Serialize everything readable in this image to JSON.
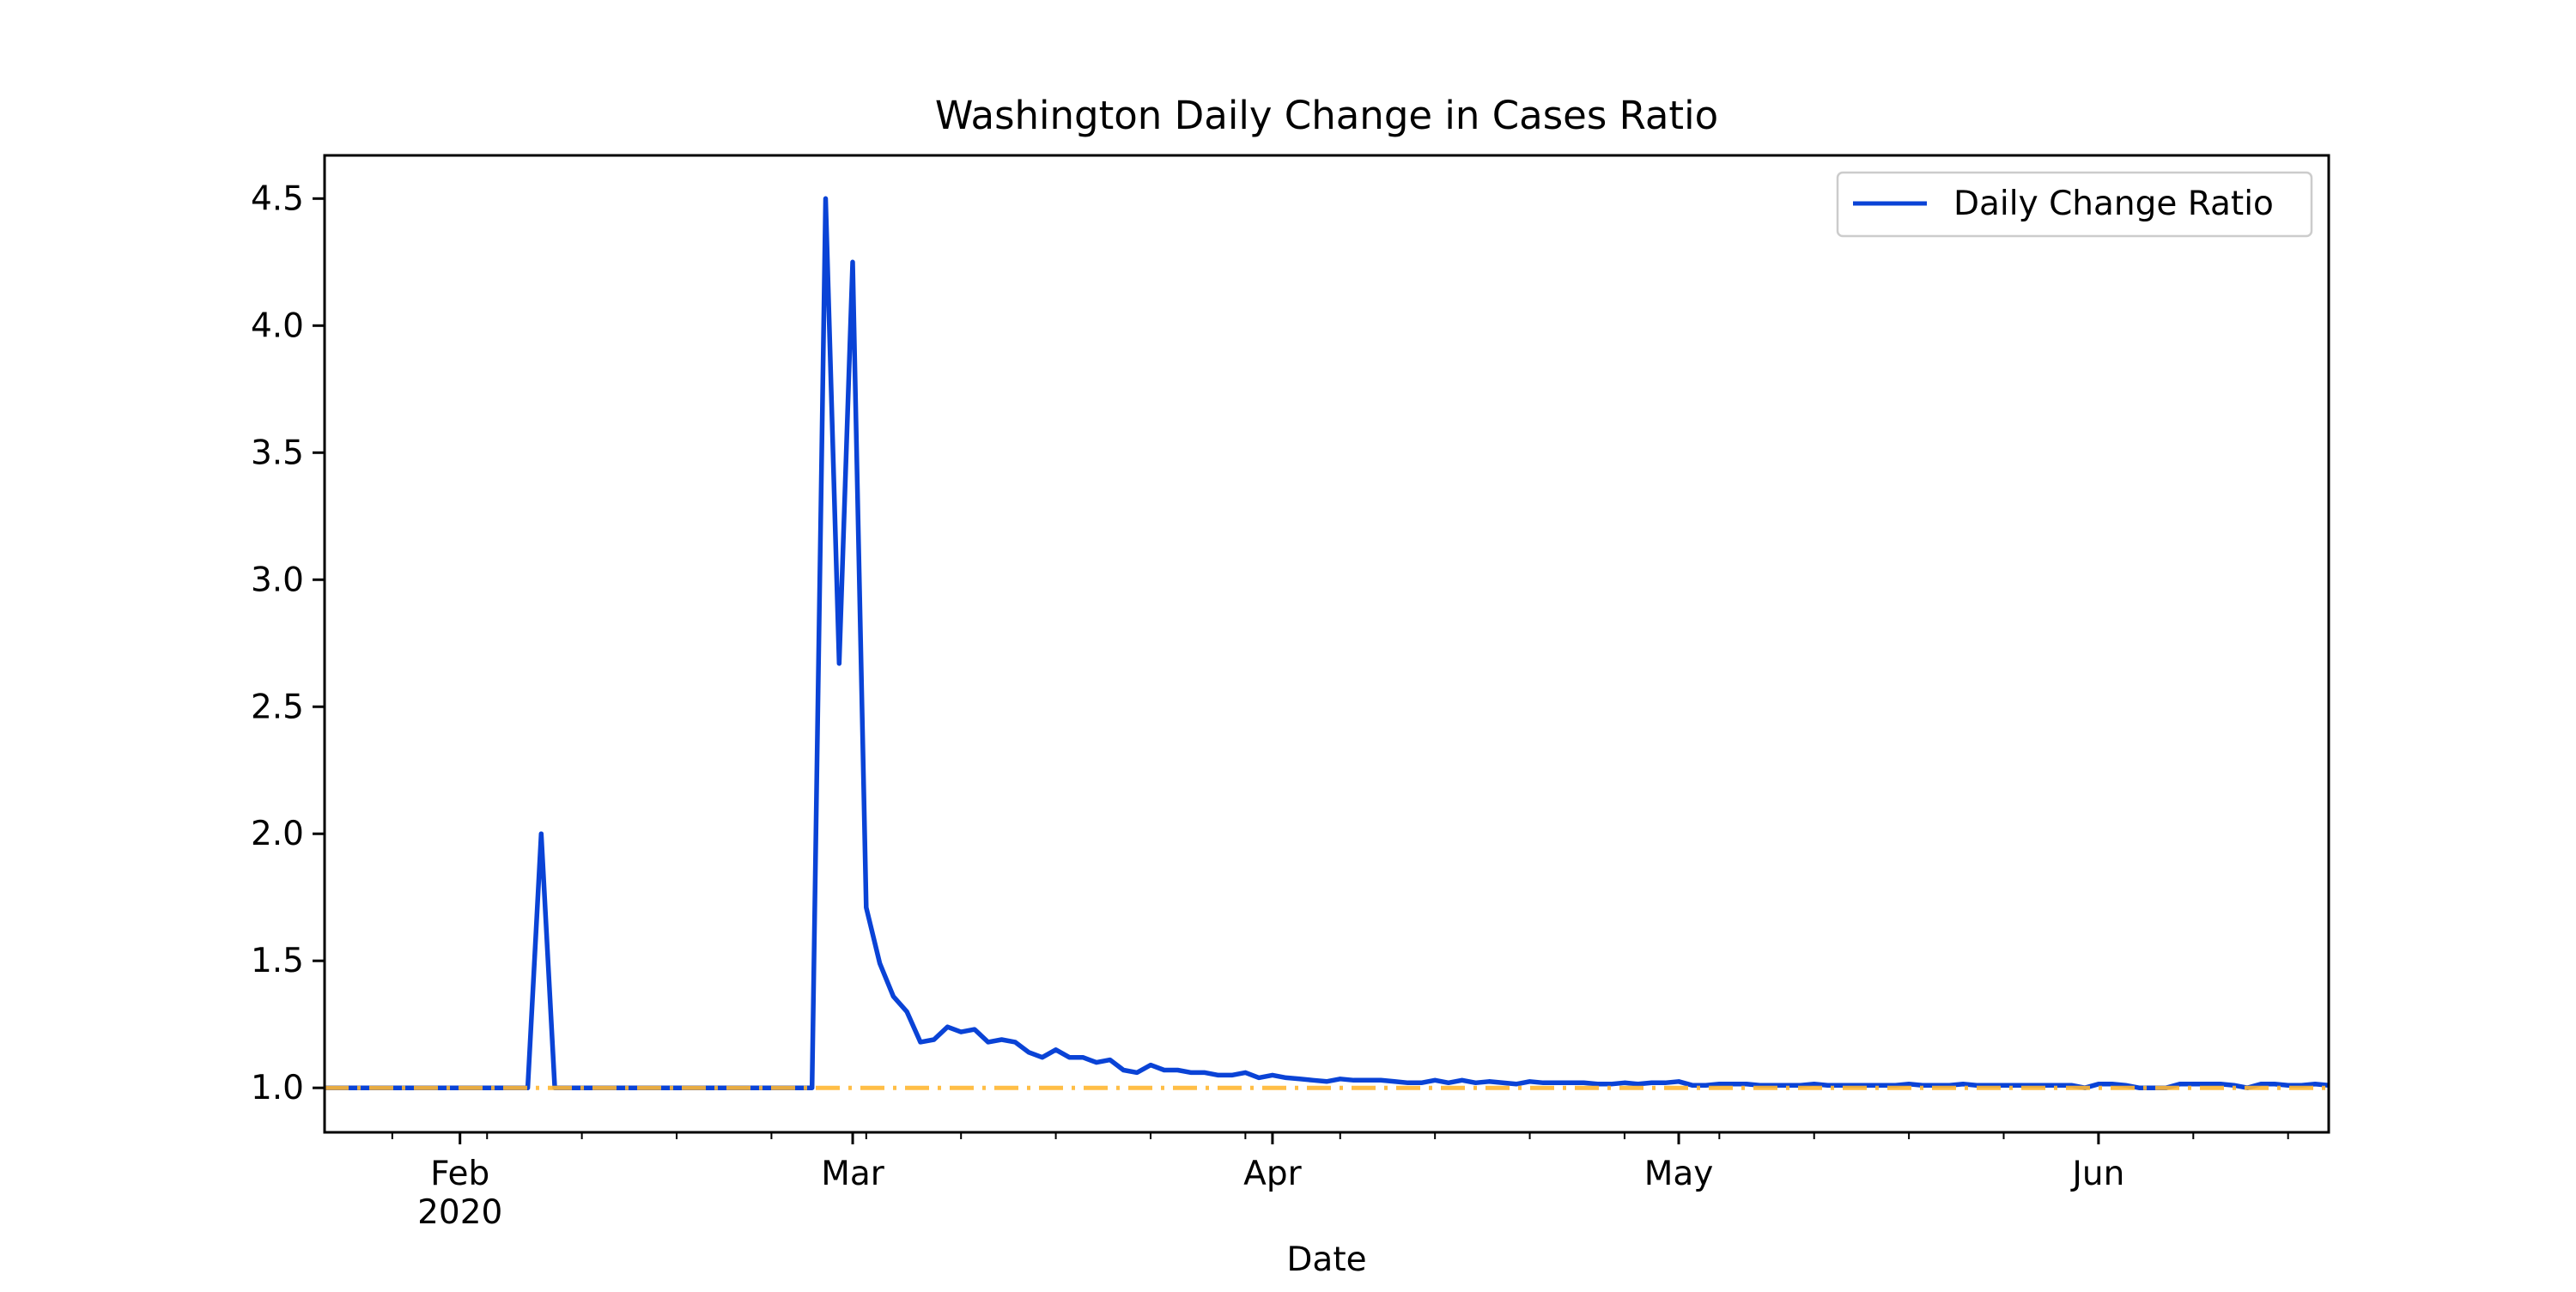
{
  "chart_data": {
    "type": "line",
    "title": "Washington Daily Change in Cases Ratio",
    "xlabel": "Date",
    "ylabel": "",
    "x_start": "2020-01-22",
    "xlim": [
      "2020-01-22",
      "2020-06-18"
    ],
    "ylim": [
      0.825,
      4.67
    ],
    "y_ticks": [
      1.0,
      1.5,
      2.0,
      2.5,
      3.0,
      3.5,
      4.0,
      4.5
    ],
    "y_tick_labels": [
      "1.0",
      "1.5",
      "2.0",
      "2.5",
      "3.0",
      "3.5",
      "4.0",
      "4.5"
    ],
    "x_major_ticks": [
      {
        "date": "2020-02-01",
        "label": "Feb",
        "sublabel": "2020"
      },
      {
        "date": "2020-03-01",
        "label": "Mar",
        "sublabel": ""
      },
      {
        "date": "2020-04-01",
        "label": "Apr",
        "sublabel": ""
      },
      {
        "date": "2020-05-01",
        "label": "May",
        "sublabel": ""
      },
      {
        "date": "2020-06-01",
        "label": "Jun",
        "sublabel": ""
      }
    ],
    "x_minor_ticks": [
      "2020-01-27",
      "2020-02-03",
      "2020-02-10",
      "2020-02-17",
      "2020-02-24",
      "2020-03-02",
      "2020-03-09",
      "2020-03-16",
      "2020-03-23",
      "2020-03-30",
      "2020-04-06",
      "2020-04-13",
      "2020-04-20",
      "2020-04-27",
      "2020-05-04",
      "2020-05-11",
      "2020-05-18",
      "2020-05-25",
      "2020-06-08",
      "2020-06-15"
    ],
    "series": [
      {
        "name": "Daily Change Ratio",
        "color": "#0a43d6",
        "values": [
          1,
          1,
          1,
          1,
          1,
          1,
          1,
          1,
          1,
          1,
          1,
          1,
          1,
          1,
          1,
          1,
          2.0,
          1,
          1,
          1,
          1,
          1,
          1,
          1,
          1,
          1,
          1,
          1,
          1,
          1,
          1,
          1,
          1,
          1,
          1,
          1,
          1,
          4.5,
          2.67,
          4.25,
          1.71,
          1.49,
          1.36,
          1.3,
          1.18,
          1.19,
          1.24,
          1.22,
          1.23,
          1.18,
          1.19,
          1.18,
          1.14,
          1.12,
          1.15,
          1.12,
          1.12,
          1.1,
          1.11,
          1.07,
          1.06,
          1.09,
          1.07,
          1.07,
          1.06,
          1.06,
          1.05,
          1.05,
          1.06,
          1.04,
          1.05,
          1.04,
          1.035,
          1.03,
          1.025,
          1.035,
          1.03,
          1.03,
          1.03,
          1.025,
          1.02,
          1.02,
          1.03,
          1.02,
          1.03,
          1.02,
          1.025,
          1.02,
          1.015,
          1.025,
          1.02,
          1.02,
          1.02,
          1.02,
          1.015,
          1.015,
          1.02,
          1.015,
          1.02,
          1.02,
          1.025,
          1.01,
          1.01,
          1.015,
          1.015,
          1.015,
          1.01,
          1.01,
          1.01,
          1.01,
          1.015,
          1.01,
          1.01,
          1.01,
          1.01,
          1.01,
          1.01,
          1.015,
          1.01,
          1.01,
          1.01,
          1.015,
          1.01,
          1.01,
          1.01,
          1.01,
          1.01,
          1.01,
          1.01,
          1.01,
          1.0,
          1.015,
          1.015,
          1.01,
          1.0,
          1.0,
          1.0,
          1.015,
          1.015,
          1.015,
          1.015,
          1.01,
          1.0,
          1.015,
          1.015,
          1.01,
          1.01,
          1.015,
          1.01
        ]
      }
    ],
    "reference_line": {
      "y": 1.0,
      "color": "#ffb733",
      "style": "dash-dot"
    },
    "legend": {
      "position": "top-right",
      "label": "Daily Change Ratio"
    },
    "grid": false
  }
}
